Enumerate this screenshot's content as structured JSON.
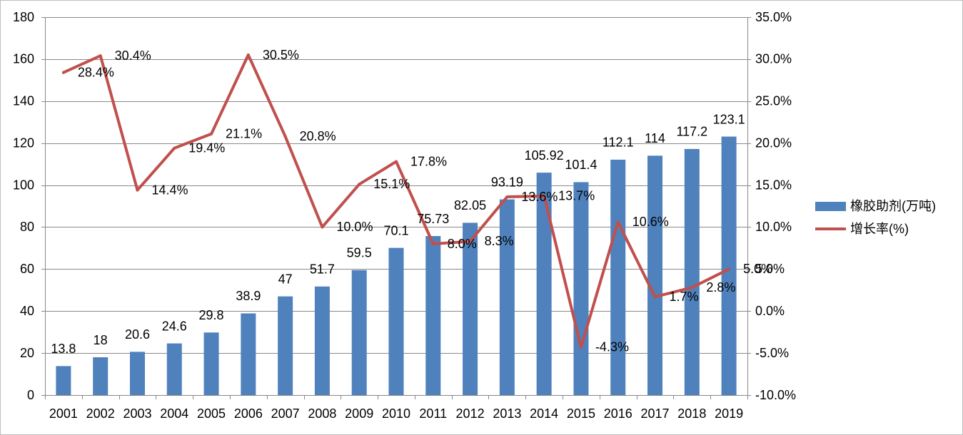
{
  "chart_data": {
    "type": "bar",
    "categories": [
      "2001",
      "2002",
      "2003",
      "2004",
      "2005",
      "2006",
      "2007",
      "2008",
      "2009",
      "2010",
      "2011",
      "2012",
      "2013",
      "2014",
      "2015",
      "2016",
      "2017",
      "2018",
      "2019"
    ],
    "series": [
      {
        "name": "橡胶助剂(万吨)",
        "type": "bar",
        "axis": "left",
        "color": "#4F81BD",
        "values": [
          13.8,
          18,
          20.6,
          24.6,
          29.8,
          38.9,
          47,
          51.7,
          59.5,
          70.1,
          75.73,
          82.05,
          93.19,
          105.92,
          101.4,
          112.1,
          114,
          117.2,
          123.1
        ],
        "data_labels": [
          "13.8",
          "18",
          "20.6",
          "24.6",
          "29.8",
          "38.9",
          "47",
          "51.7",
          "59.5",
          "70.1",
          "75.73",
          "82.05",
          "93.19",
          "105.92",
          "101.4",
          "112.1",
          "114",
          "117.2",
          "123.1"
        ]
      },
      {
        "name": "增长率(%)",
        "type": "line",
        "axis": "right",
        "color": "#C0504D",
        "values": [
          28.4,
          30.4,
          14.4,
          19.4,
          21.1,
          30.5,
          20.8,
          10.0,
          15.1,
          17.8,
          8.0,
          8.3,
          13.6,
          13.7,
          -4.3,
          10.6,
          1.7,
          2.8,
          5.0
        ],
        "data_labels": [
          "28.4%",
          "30.4%",
          "14.4%",
          "19.4%",
          "21.1%",
          "30.5%",
          "20.8%",
          "10.0%",
          "15.1%",
          "17.8%",
          "8.0%",
          "8.3%",
          "13.6%",
          "13.7%",
          "-4.3%",
          "10.6%",
          "1.7%",
          "2.8%",
          "5.0%"
        ]
      }
    ],
    "y_left": {
      "ylim": [
        0,
        180
      ],
      "ticks": [
        "0",
        "20",
        "40",
        "60",
        "80",
        "100",
        "120",
        "140",
        "160",
        "180"
      ]
    },
    "y_right": {
      "ylim": [
        -10,
        35
      ],
      "ticks": [
        "-10.0%",
        "-5.0%",
        "0.0%",
        "5.0%",
        "10.0%",
        "15.0%",
        "20.0%",
        "25.0%",
        "30.0%",
        "35.0%"
      ]
    },
    "grid": true,
    "legend": "right"
  }
}
